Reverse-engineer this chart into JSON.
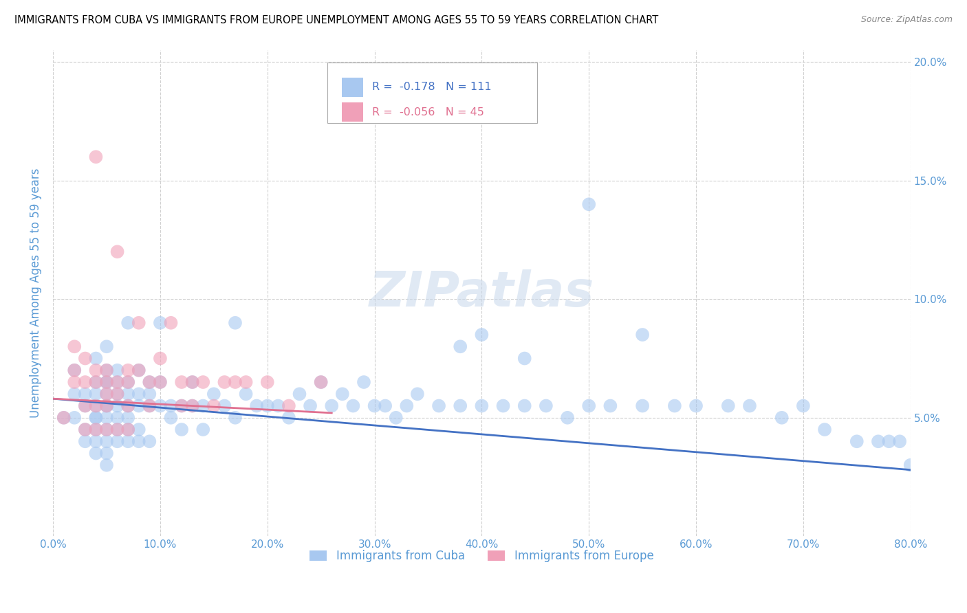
{
  "title": "IMMIGRANTS FROM CUBA VS IMMIGRANTS FROM EUROPE UNEMPLOYMENT AMONG AGES 55 TO 59 YEARS CORRELATION CHART",
  "source": "Source: ZipAtlas.com",
  "ylabel": "Unemployment Among Ages 55 to 59 years",
  "xlim": [
    0.0,
    0.8
  ],
  "ylim": [
    0.0,
    0.205
  ],
  "xticks": [
    0.0,
    0.1,
    0.2,
    0.3,
    0.4,
    0.5,
    0.6,
    0.7,
    0.8
  ],
  "xticklabels": [
    "0.0%",
    "10.0%",
    "20.0%",
    "30.0%",
    "40.0%",
    "50.0%",
    "60.0%",
    "70.0%",
    "80.0%"
  ],
  "yticks": [
    0.0,
    0.05,
    0.1,
    0.15,
    0.2
  ],
  "yticklabels": [
    "",
    "5.0%",
    "10.0%",
    "15.0%",
    "20.0%"
  ],
  "legend_R_cuba": "R =  -0.178",
  "legend_N_cuba": "N = 111",
  "legend_R_europe": "R =  -0.056",
  "legend_N_europe": "N = 45",
  "legend_label_cuba": "Immigrants from Cuba",
  "legend_label_europe": "Immigrants from Europe",
  "watermark": "ZIPatlas",
  "cuba_color": "#a8c8f0",
  "europe_color": "#f0a0b8",
  "cuba_trendline_color": "#4472c4",
  "europe_trendline_color": "#e07090",
  "background_color": "#ffffff",
  "grid_color": "#d0d0d0",
  "title_color": "#000000",
  "tick_label_color": "#5b9bd5",
  "cuba_trend_x": [
    0.0,
    0.8
  ],
  "cuba_trend_y": [
    0.058,
    0.028
  ],
  "europe_trend_x": [
    0.0,
    0.26
  ],
  "europe_trend_y": [
    0.058,
    0.052
  ],
  "cuba_scatter_x": [
    0.01,
    0.02,
    0.02,
    0.02,
    0.03,
    0.03,
    0.03,
    0.03,
    0.04,
    0.04,
    0.04,
    0.04,
    0.04,
    0.04,
    0.04,
    0.04,
    0.04,
    0.05,
    0.05,
    0.05,
    0.05,
    0.05,
    0.05,
    0.05,
    0.05,
    0.05,
    0.05,
    0.05,
    0.05,
    0.06,
    0.06,
    0.06,
    0.06,
    0.06,
    0.06,
    0.06,
    0.07,
    0.07,
    0.07,
    0.07,
    0.07,
    0.07,
    0.07,
    0.08,
    0.08,
    0.08,
    0.08,
    0.08,
    0.09,
    0.09,
    0.09,
    0.09,
    0.1,
    0.1,
    0.1,
    0.11,
    0.11,
    0.12,
    0.12,
    0.13,
    0.13,
    0.14,
    0.14,
    0.15,
    0.16,
    0.17,
    0.17,
    0.18,
    0.19,
    0.2,
    0.21,
    0.22,
    0.23,
    0.24,
    0.25,
    0.26,
    0.27,
    0.28,
    0.29,
    0.3,
    0.31,
    0.32,
    0.33,
    0.34,
    0.36,
    0.38,
    0.4,
    0.42,
    0.44,
    0.46,
    0.48,
    0.5,
    0.52,
    0.55,
    0.58,
    0.6,
    0.63,
    0.65,
    0.68,
    0.7,
    0.72,
    0.75,
    0.77,
    0.78,
    0.79,
    0.8,
    0.5,
    0.55,
    0.38,
    0.4,
    0.44
  ],
  "cuba_scatter_y": [
    0.05,
    0.06,
    0.05,
    0.07,
    0.06,
    0.055,
    0.045,
    0.04,
    0.065,
    0.055,
    0.05,
    0.045,
    0.04,
    0.06,
    0.075,
    0.05,
    0.035,
    0.07,
    0.065,
    0.06,
    0.055,
    0.05,
    0.045,
    0.04,
    0.035,
    0.065,
    0.055,
    0.08,
    0.03,
    0.065,
    0.055,
    0.06,
    0.05,
    0.045,
    0.07,
    0.04,
    0.065,
    0.06,
    0.055,
    0.05,
    0.045,
    0.04,
    0.09,
    0.06,
    0.07,
    0.055,
    0.045,
    0.04,
    0.065,
    0.055,
    0.06,
    0.04,
    0.065,
    0.055,
    0.09,
    0.055,
    0.05,
    0.055,
    0.045,
    0.065,
    0.055,
    0.055,
    0.045,
    0.06,
    0.055,
    0.09,
    0.05,
    0.06,
    0.055,
    0.055,
    0.055,
    0.05,
    0.06,
    0.055,
    0.065,
    0.055,
    0.06,
    0.055,
    0.065,
    0.055,
    0.055,
    0.05,
    0.055,
    0.06,
    0.055,
    0.055,
    0.055,
    0.055,
    0.055,
    0.055,
    0.05,
    0.055,
    0.055,
    0.055,
    0.055,
    0.055,
    0.055,
    0.055,
    0.05,
    0.055,
    0.045,
    0.04,
    0.04,
    0.04,
    0.04,
    0.03,
    0.14,
    0.085,
    0.08,
    0.085,
    0.075
  ],
  "europe_scatter_x": [
    0.01,
    0.02,
    0.02,
    0.02,
    0.03,
    0.03,
    0.03,
    0.03,
    0.04,
    0.04,
    0.04,
    0.04,
    0.04,
    0.05,
    0.05,
    0.05,
    0.05,
    0.05,
    0.06,
    0.06,
    0.06,
    0.06,
    0.07,
    0.07,
    0.07,
    0.07,
    0.08,
    0.08,
    0.09,
    0.09,
    0.1,
    0.1,
    0.11,
    0.12,
    0.12,
    0.13,
    0.13,
    0.14,
    0.15,
    0.16,
    0.17,
    0.18,
    0.2,
    0.22,
    0.25
  ],
  "europe_scatter_y": [
    0.05,
    0.07,
    0.065,
    0.08,
    0.055,
    0.065,
    0.075,
    0.045,
    0.055,
    0.065,
    0.07,
    0.16,
    0.045,
    0.055,
    0.065,
    0.06,
    0.045,
    0.07,
    0.12,
    0.065,
    0.06,
    0.045,
    0.07,
    0.065,
    0.055,
    0.045,
    0.07,
    0.09,
    0.065,
    0.055,
    0.075,
    0.065,
    0.09,
    0.065,
    0.055,
    0.065,
    0.055,
    0.065,
    0.055,
    0.065,
    0.065,
    0.065,
    0.065,
    0.055,
    0.065
  ]
}
